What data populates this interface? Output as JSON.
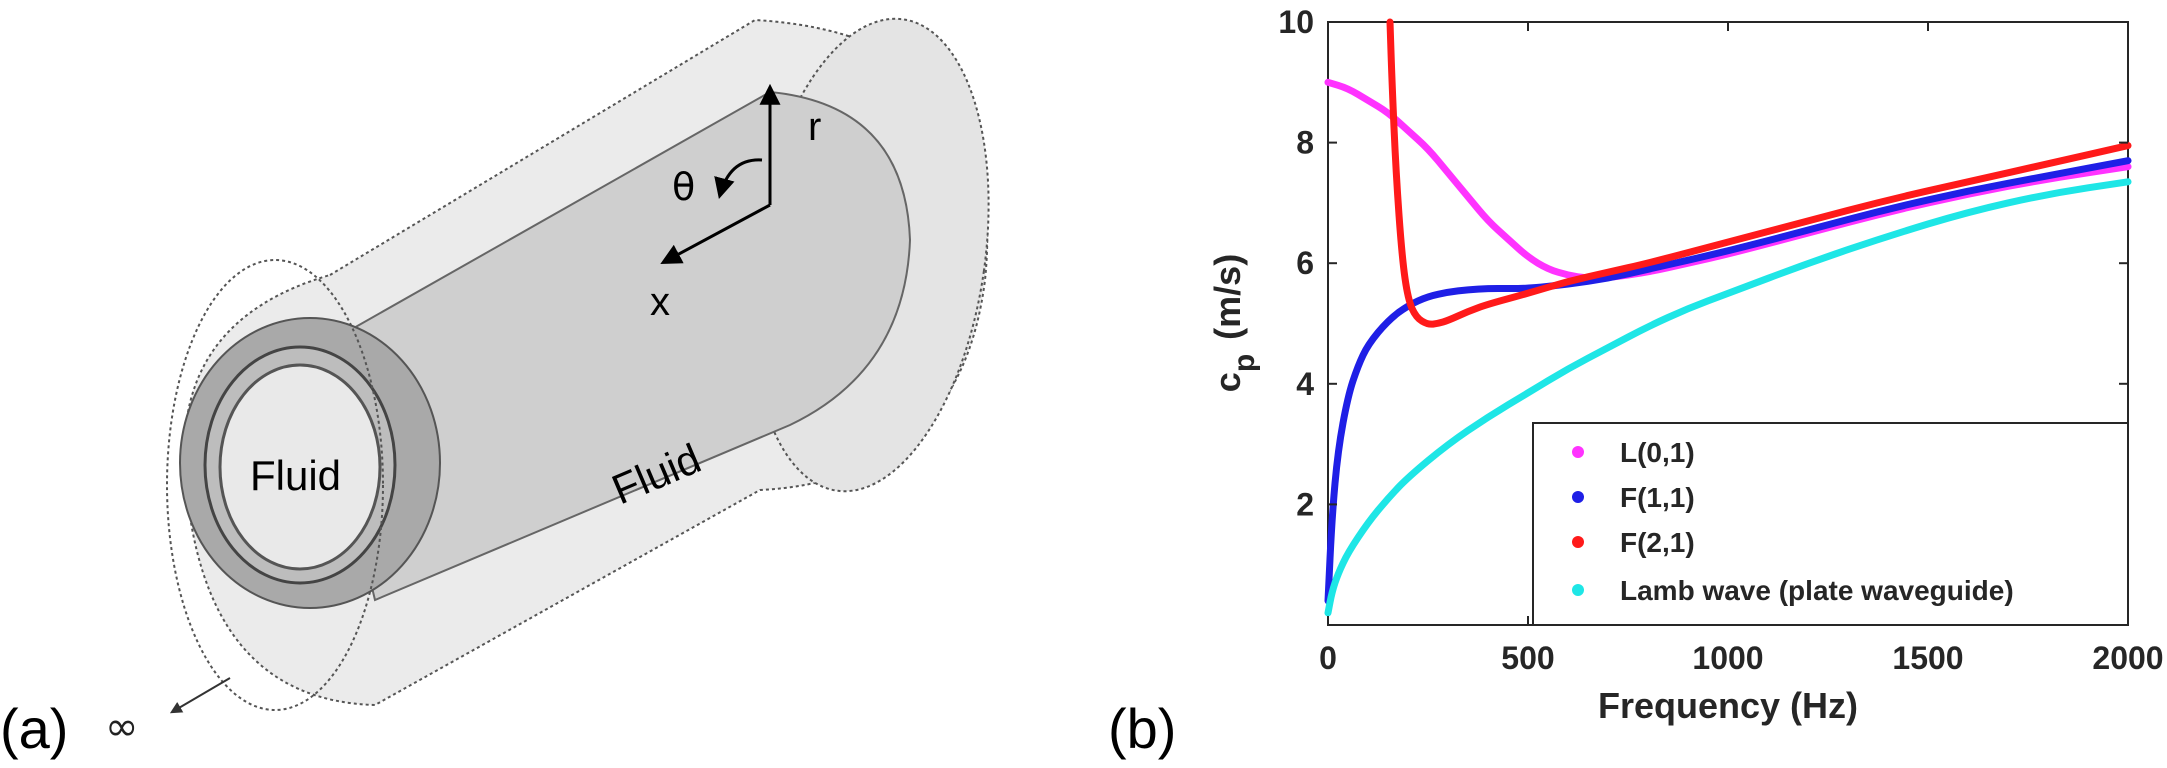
{
  "panel_a": {
    "label": "(a)",
    "infinity_label": "∞",
    "axis_labels": {
      "r": "r",
      "theta": "θ",
      "x": "x"
    },
    "inner_fluid_label": "Fluid",
    "outer_fluid_label": "Fluid"
  },
  "panel_b": {
    "label": "(b)"
  },
  "chart_data": {
    "type": "line",
    "title": "",
    "xlabel": "Frequency (Hz)",
    "ylabel": "c_p (m/s)",
    "ylabel_main": "c",
    "ylabel_sub": "p",
    "ylabel_units": "(m/s)",
    "xlim": [
      0,
      2000
    ],
    "ylim": [
      0,
      10
    ],
    "xticks": [
      0,
      500,
      1000,
      1500,
      2000
    ],
    "yticks": [
      2,
      4,
      6,
      8,
      10
    ],
    "grid": false,
    "legend_position": "bottom-right",
    "series": [
      {
        "name": "L(0,1)",
        "color": "#ff33ff",
        "x": [
          0,
          50,
          100,
          150,
          200,
          250,
          300,
          350,
          400,
          450,
          500,
          550,
          600,
          650,
          700,
          800,
          900,
          1000,
          1200,
          1400,
          1600,
          1800,
          2000
        ],
        "y": [
          9.0,
          8.9,
          8.7,
          8.5,
          8.2,
          7.9,
          7.5,
          7.1,
          6.7,
          6.4,
          6.1,
          5.9,
          5.8,
          5.75,
          5.76,
          5.85,
          6.0,
          6.15,
          6.5,
          6.85,
          7.15,
          7.4,
          7.6
        ]
      },
      {
        "name": "F(1,1)",
        "color": "#1f1fe6",
        "x": [
          0,
          10,
          25,
          50,
          75,
          100,
          150,
          200,
          250,
          300,
          350,
          400,
          450,
          500,
          600,
          700,
          800,
          1000,
          1200,
          1400,
          1600,
          1800,
          2000
        ],
        "y": [
          0.4,
          1.8,
          2.9,
          3.8,
          4.3,
          4.65,
          5.05,
          5.3,
          5.45,
          5.52,
          5.56,
          5.58,
          5.58,
          5.58,
          5.65,
          5.75,
          5.9,
          6.2,
          6.55,
          6.9,
          7.2,
          7.45,
          7.7
        ]
      },
      {
        "name": "F(2,1)",
        "color": "#ff1a1a",
        "x": [
          155,
          160,
          170,
          185,
          200,
          220,
          250,
          275,
          300,
          350,
          400,
          500,
          600,
          700,
          800,
          1000,
          1200,
          1400,
          1600,
          1800,
          2000
        ],
        "y": [
          10.0,
          9.0,
          7.5,
          6.1,
          5.4,
          5.1,
          4.98,
          5.0,
          5.05,
          5.2,
          5.32,
          5.5,
          5.7,
          5.85,
          6.0,
          6.35,
          6.7,
          7.05,
          7.35,
          7.65,
          7.95
        ]
      },
      {
        "name": "Lamb wave (plate waveguide)",
        "color": "#1ee6e6",
        "x": [
          0,
          10,
          25,
          50,
          100,
          150,
          200,
          300,
          400,
          500,
          600,
          700,
          800,
          900,
          1000,
          1200,
          1400,
          1600,
          1800,
          2000
        ],
        "y": [
          0.2,
          0.55,
          0.85,
          1.2,
          1.7,
          2.1,
          2.45,
          3.0,
          3.45,
          3.85,
          4.25,
          4.6,
          4.95,
          5.25,
          5.5,
          6.0,
          6.45,
          6.85,
          7.15,
          7.35
        ]
      }
    ]
  }
}
